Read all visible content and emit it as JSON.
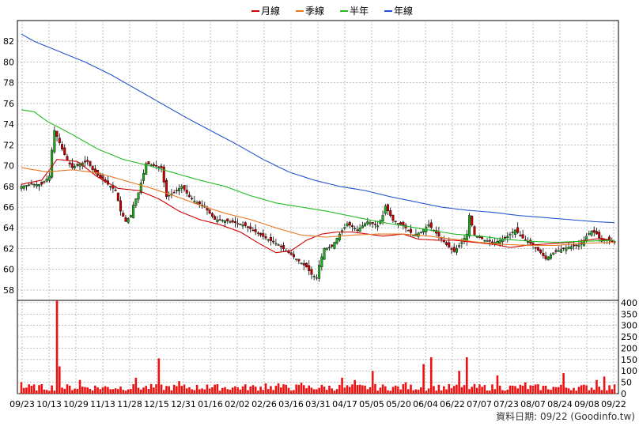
{
  "chart_data": {
    "type": "candlestick",
    "legend": [
      {
        "name": "月線",
        "color": "#cc0000"
      },
      {
        "name": "季線",
        "color": "#e87722"
      },
      {
        "name": "半年",
        "color": "#22bb22"
      },
      {
        "name": "年線",
        "color": "#2255cc"
      }
    ],
    "price_axis": {
      "ylim": [
        57,
        84
      ],
      "ticks": [
        "58",
        "60",
        "62",
        "64",
        "66",
        "68",
        "70",
        "72",
        "74",
        "76",
        "78",
        "80",
        "82"
      ]
    },
    "volume_axis": {
      "ylim": [
        0,
        410
      ],
      "ticks": [
        "0",
        "50",
        "100",
        "150",
        "200",
        "250",
        "300",
        "350",
        "400"
      ]
    },
    "x_ticks": [
      "09/23",
      "10/13",
      "10/29",
      "11/13",
      "11/28",
      "12/15",
      "12/31",
      "01/16",
      "02/02",
      "02/26",
      "03/16",
      "03/31",
      "04/17",
      "05/05",
      "05/20",
      "06/04",
      "06/22",
      "07/07",
      "07/23",
      "08/07",
      "08/24",
      "09/08",
      "09/22"
    ],
    "footer": "資料日期: 09/22  (Goodinfo.tw)",
    "moving_averages": {
      "月線": [
        [
          0,
          68.2
        ],
        [
          8,
          68.6
        ],
        [
          14,
          70.6
        ],
        [
          22,
          70.4
        ],
        [
          30,
          68.9
        ],
        [
          38,
          67.8
        ],
        [
          46,
          67.6
        ],
        [
          54,
          66.8
        ],
        [
          62,
          65.6
        ],
        [
          70,
          64.8
        ],
        [
          78,
          64.3
        ],
        [
          86,
          63.6
        ],
        [
          94,
          62.4
        ],
        [
          100,
          61.6
        ],
        [
          106,
          61.8
        ],
        [
          112,
          62.8
        ],
        [
          118,
          63.4
        ],
        [
          124,
          63.6
        ],
        [
          130,
          63.6
        ],
        [
          136,
          63.4
        ],
        [
          142,
          63.2
        ],
        [
          150,
          63.4
        ],
        [
          156,
          62.9
        ],
        [
          164,
          62.8
        ],
        [
          170,
          62.8
        ],
        [
          178,
          62.6
        ],
        [
          186,
          62.4
        ],
        [
          192,
          62.1
        ],
        [
          198,
          62.3
        ],
        [
          204,
          62.4
        ],
        [
          210,
          62.5
        ],
        [
          216,
          62.6
        ],
        [
          222,
          62.8
        ],
        [
          228,
          63.0
        ],
        [
          233,
          62.6
        ]
      ],
      "季線": [
        [
          0,
          69.8
        ],
        [
          10,
          69.4
        ],
        [
          20,
          69.6
        ],
        [
          30,
          69.3
        ],
        [
          40,
          68.6
        ],
        [
          50,
          67.9
        ],
        [
          60,
          67.1
        ],
        [
          70,
          66.2
        ],
        [
          80,
          65.4
        ],
        [
          90,
          64.8
        ],
        [
          100,
          64.0
        ],
        [
          110,
          63.3
        ],
        [
          120,
          63.1
        ],
        [
          130,
          63.3
        ],
        [
          140,
          63.4
        ],
        [
          150,
          63.4
        ],
        [
          160,
          63.2
        ],
        [
          170,
          62.9
        ],
        [
          180,
          62.6
        ],
        [
          190,
          62.4
        ],
        [
          200,
          62.3
        ],
        [
          210,
          62.3
        ],
        [
          220,
          62.5
        ],
        [
          233,
          62.6
        ]
      ],
      "半年": [
        [
          0,
          75.4
        ],
        [
          5,
          75.2
        ],
        [
          10,
          74.3
        ],
        [
          20,
          73.0
        ],
        [
          30,
          71.6
        ],
        [
          40,
          70.6
        ],
        [
          50,
          70.0
        ],
        [
          60,
          69.3
        ],
        [
          70,
          68.6
        ],
        [
          80,
          68.0
        ],
        [
          90,
          67.1
        ],
        [
          100,
          66.4
        ],
        [
          110,
          66.0
        ],
        [
          120,
          65.6
        ],
        [
          130,
          65.1
        ],
        [
          140,
          64.6
        ],
        [
          150,
          64.2
        ],
        [
          160,
          63.8
        ],
        [
          170,
          63.4
        ],
        [
          180,
          63.2
        ],
        [
          190,
          62.9
        ],
        [
          200,
          62.7
        ],
        [
          210,
          62.6
        ],
        [
          220,
          62.7
        ],
        [
          233,
          62.8
        ]
      ],
      "年線": [
        [
          0,
          82.7
        ],
        [
          5,
          82.0
        ],
        [
          15,
          81.0
        ],
        [
          25,
          80.0
        ],
        [
          35,
          78.8
        ],
        [
          45,
          77.4
        ],
        [
          55,
          76.0
        ],
        [
          65,
          74.6
        ],
        [
          75,
          73.3
        ],
        [
          85,
          72.0
        ],
        [
          95,
          70.6
        ],
        [
          105,
          69.4
        ],
        [
          115,
          68.6
        ],
        [
          125,
          68.0
        ],
        [
          135,
          67.6
        ],
        [
          145,
          67.0
        ],
        [
          155,
          66.5
        ],
        [
          165,
          66.0
        ],
        [
          175,
          65.7
        ],
        [
          185,
          65.5
        ],
        [
          195,
          65.2
        ],
        [
          205,
          65.0
        ],
        [
          215,
          64.8
        ],
        [
          225,
          64.6
        ],
        [
          233,
          64.5
        ]
      ]
    },
    "price_keypoints": [
      [
        0,
        68.0
      ],
      [
        4,
        68.2
      ],
      [
        8,
        68.2
      ],
      [
        11,
        69.0
      ],
      [
        12,
        71.5
      ],
      [
        13,
        73.4
      ],
      [
        14,
        72.8
      ],
      [
        16,
        71.6
      ],
      [
        18,
        70.5
      ],
      [
        20,
        69.8
      ],
      [
        23,
        70.2
      ],
      [
        26,
        70.4
      ],
      [
        28,
        69.6
      ],
      [
        31,
        68.8
      ],
      [
        34,
        68.2
      ],
      [
        37,
        67.6
      ],
      [
        39,
        65.6
      ],
      [
        41,
        64.6
      ],
      [
        43,
        65.2
      ],
      [
        44,
        66.2
      ],
      [
        46,
        67.4
      ],
      [
        49,
        70.2
      ],
      [
        52,
        70.0
      ],
      [
        55,
        69.8
      ],
      [
        57,
        67.0
      ],
      [
        60,
        67.4
      ],
      [
        63,
        68.0
      ],
      [
        66,
        67.0
      ],
      [
        68,
        66.6
      ],
      [
        72,
        66.0
      ],
      [
        76,
        64.8
      ],
      [
        80,
        64.7
      ],
      [
        84,
        64.5
      ],
      [
        88,
        64.2
      ],
      [
        92,
        63.6
      ],
      [
        96,
        63.0
      ],
      [
        100,
        62.5
      ],
      [
        104,
        61.8
      ],
      [
        108,
        61.0
      ],
      [
        112,
        60.2
      ],
      [
        114,
        59.5
      ],
      [
        116,
        59.2
      ],
      [
        117,
        60.4
      ],
      [
        119,
        62.0
      ],
      [
        122,
        62.2
      ],
      [
        125,
        63.4
      ],
      [
        128,
        64.4
      ],
      [
        132,
        63.8
      ],
      [
        136,
        64.6
      ],
      [
        140,
        64.2
      ],
      [
        142,
        65.2
      ],
      [
        143,
        66.1
      ],
      [
        146,
        64.7
      ],
      [
        150,
        64.2
      ],
      [
        154,
        63.3
      ],
      [
        157,
        63.6
      ],
      [
        160,
        64.3
      ],
      [
        164,
        63.2
      ],
      [
        168,
        62.1
      ],
      [
        170,
        61.7
      ],
      [
        173,
        62.6
      ],
      [
        175,
        63.4
      ],
      [
        176,
        65.2
      ],
      [
        178,
        63.3
      ],
      [
        182,
        62.8
      ],
      [
        186,
        62.6
      ],
      [
        190,
        63.0
      ],
      [
        194,
        63.8
      ],
      [
        197,
        63.0
      ],
      [
        200,
        62.5
      ],
      [
        204,
        61.6
      ],
      [
        206,
        61.0
      ],
      [
        209,
        61.6
      ],
      [
        212,
        61.9
      ],
      [
        216,
        62.2
      ],
      [
        220,
        62.4
      ],
      [
        222,
        63.2
      ],
      [
        224,
        63.7
      ],
      [
        226,
        63.4
      ],
      [
        228,
        62.7
      ],
      [
        230,
        62.9
      ],
      [
        233,
        62.6
      ]
    ],
    "volume_spikes": [
      [
        0,
        50
      ],
      [
        14,
        410
      ],
      [
        15,
        120
      ],
      [
        23,
        60
      ],
      [
        45,
        70
      ],
      [
        54,
        155
      ],
      [
        62,
        55
      ],
      [
        73,
        40
      ],
      [
        96,
        45
      ],
      [
        101,
        45
      ],
      [
        110,
        48
      ],
      [
        126,
        70
      ],
      [
        131,
        60
      ],
      [
        138,
        100
      ],
      [
        151,
        50
      ],
      [
        158,
        130
      ],
      [
        161,
        160
      ],
      [
        172,
        100
      ],
      [
        175,
        160
      ],
      [
        187,
        80
      ],
      [
        198,
        50
      ],
      [
        213,
        90
      ],
      [
        226,
        60
      ],
      [
        229,
        75
      ]
    ],
    "volume_base": 25
  }
}
